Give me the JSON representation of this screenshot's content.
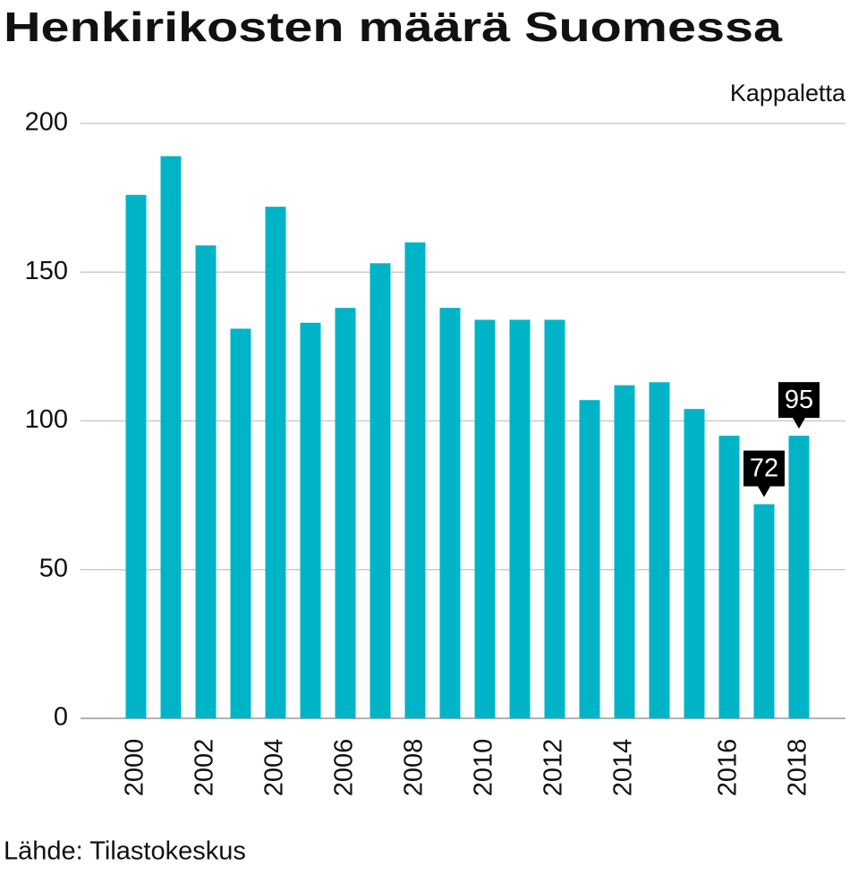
{
  "chart_data": {
    "type": "bar",
    "title": "Henkirikosten määrä Suomessa",
    "unit_label": "Kappaletta",
    "source": "Lähde: Tilastokeskus",
    "categories": [
      "2000",
      null,
      "2002",
      null,
      "2004",
      null,
      "2006",
      null,
      "2008",
      null,
      "2010",
      null,
      "2012",
      null,
      "2014",
      null,
      null,
      "2016",
      null,
      "2018"
    ],
    "values": [
      176,
      189,
      159,
      131,
      172,
      133,
      138,
      153,
      160,
      138,
      134,
      134,
      134,
      107,
      112,
      113,
      104,
      95,
      72,
      95
    ],
    "value_labels": [
      null,
      null,
      null,
      null,
      null,
      null,
      null,
      null,
      null,
      null,
      null,
      null,
      null,
      null,
      null,
      null,
      null,
      null,
      "72",
      "95"
    ],
    "color": "#00b4c8",
    "ylim": [
      0,
      200
    ],
    "yticks": [
      0,
      50,
      100,
      150,
      200
    ],
    "grid": true
  }
}
